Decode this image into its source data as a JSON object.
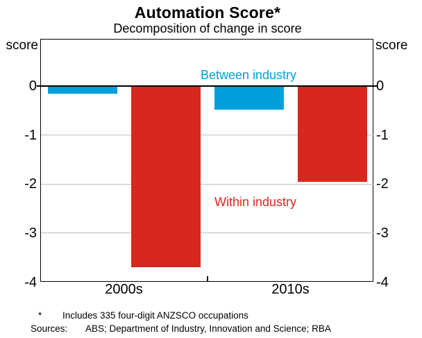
{
  "chart_data": {
    "type": "bar",
    "title": "Automation Score*",
    "subtitle": "Decomposition of change in score",
    "unit_left": "score",
    "unit_right": "score",
    "categories": [
      "2000s",
      "2010s"
    ],
    "series": [
      {
        "name": "Between industry",
        "color": "#00A0DC",
        "values": [
          -0.15,
          -0.47
        ]
      },
      {
        "name": "Within industry",
        "color": "#D8271F",
        "values": [
          -3.7,
          -1.95
        ]
      }
    ],
    "yticks": [
      0,
      -1,
      -2,
      -3,
      -4
    ],
    "ylim": [
      -4,
      0.95
    ],
    "grid": "horizontal",
    "gridline_color": "#BEBEBE",
    "axis_color": "#000000",
    "legend_position": "in-plot text annotations"
  },
  "footnote": {
    "marker": "*",
    "text": "Includes 335 four-digit ANZSCO occupations"
  },
  "sources": {
    "label": "Sources:",
    "text": "ABS; Department of Industry, Innovation and Science; RBA"
  }
}
